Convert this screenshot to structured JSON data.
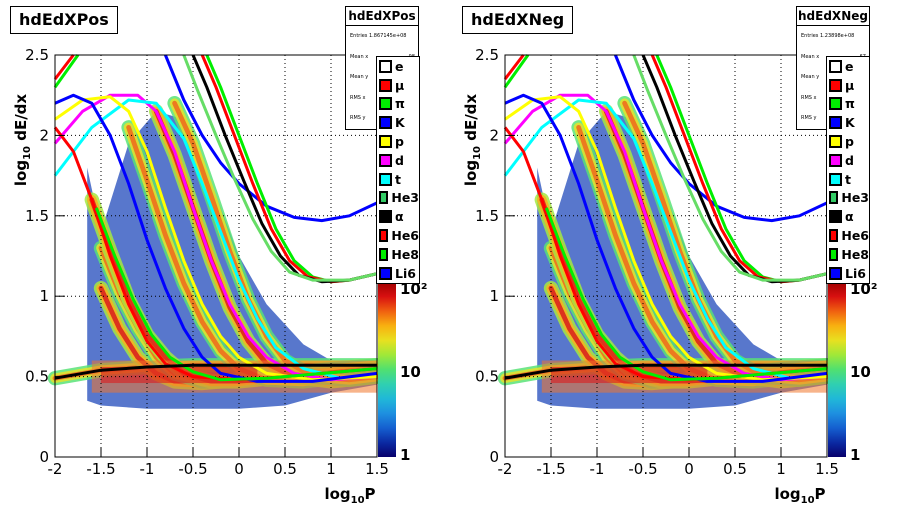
{
  "chart_data": [
    {
      "type": "heatmap",
      "title": "hdEdXPos",
      "xlabel": "log10P",
      "ylabel": "log10 dE/dx",
      "xlim": [
        -2,
        1.5
      ],
      "ylim": [
        0,
        2.5
      ],
      "x_ticks": [
        "-2",
        "-1.5",
        "-1",
        "-0.5",
        "0",
        "0.5",
        "1",
        "1.5"
      ],
      "y_ticks": [
        "0",
        "0.5",
        "1",
        "1.5",
        "2",
        "2.5"
      ],
      "grid": true,
      "z_scale": "log",
      "z_ticks": [
        "1",
        "10",
        "10²"
      ],
      "stats": {
        "name": "hdEdXPos",
        "rows": [
          "Entries  1.867145e+08",
          "Mean x",
          "Mean y",
          "RMS x",
          "RMS y"
        ],
        "values": [
          "",
          "98",
          "92",
          "42",
          "96"
        ]
      },
      "legend": [
        "e",
        "μ",
        "π",
        "K",
        "p",
        "d",
        "t",
        "He3",
        "α",
        "He6",
        "He8",
        "Li6"
      ],
      "legend_colors": [
        "#ffffff",
        "#ff0000",
        "#00ee00",
        "#0000ff",
        "#ffff00",
        "#ff00ff",
        "#00ffff",
        "#33cc66",
        "#000000",
        "#ff0000",
        "#00ee00",
        "#0000ff"
      ]
    },
    {
      "type": "heatmap",
      "title": "hdEdXNeg",
      "xlabel": "log10P",
      "ylabel": "log10 dE/dx",
      "xlim": [
        -2,
        1.5
      ],
      "ylim": [
        0,
        2.5
      ],
      "x_ticks": [
        "-2",
        "-1.5",
        "-1",
        "-0.5",
        "0",
        "0.5",
        "1",
        "1.5"
      ],
      "y_ticks": [
        "0",
        "0.5",
        "1",
        "1.5",
        "2",
        "2.5"
      ],
      "grid": true,
      "z_scale": "log",
      "z_ticks": [
        "1",
        "10",
        "10²"
      ],
      "stats": {
        "name": "hdEdXNeg",
        "rows": [
          "Entries  1.23898e+08",
          "Mean x",
          "Mean y",
          "RMS x",
          "RMS y"
        ],
        "values": [
          "",
          "67",
          "44",
          "84",
          "43"
        ]
      },
      "legend": [
        "e",
        "μ",
        "π",
        "K",
        "p",
        "d",
        "t",
        "He3",
        "α",
        "He6",
        "He8",
        "Li6"
      ],
      "legend_colors": [
        "#ffffff",
        "#ff0000",
        "#00ee00",
        "#0000ff",
        "#ffff00",
        "#ff00ff",
        "#00ffff",
        "#33cc66",
        "#000000",
        "#ff0000",
        "#00ee00",
        "#0000ff"
      ]
    }
  ],
  "bands": [
    {
      "name": "e",
      "color": "#000000",
      "points": [
        [
          -2,
          0.49
        ],
        [
          -1.5,
          0.54
        ],
        [
          -1,
          0.56
        ],
        [
          -0.5,
          0.57
        ],
        [
          0,
          0.57
        ],
        [
          0.5,
          0.57
        ],
        [
          1.5,
          0.57
        ]
      ]
    },
    {
      "name": "μ",
      "color": "#0000ff",
      "points": [
        [
          -1.5,
          1.05
        ],
        [
          -1.3,
          0.8
        ],
        [
          -1.1,
          0.62
        ],
        [
          -0.9,
          0.52
        ],
        [
          -0.7,
          0.47
        ],
        [
          -0.4,
          0.46
        ],
        [
          0,
          0.48
        ],
        [
          0.5,
          0.52
        ],
        [
          1,
          0.55
        ],
        [
          1.5,
          0.57
        ]
      ]
    },
    {
      "name": "π",
      "color": "#00ee00",
      "points": [
        [
          -1.5,
          1.3
        ],
        [
          -1.3,
          1.02
        ],
        [
          -1.1,
          0.8
        ],
        [
          -0.9,
          0.62
        ],
        [
          -0.7,
          0.52
        ],
        [
          -0.4,
          0.47
        ],
        [
          0,
          0.48
        ],
        [
          0.5,
          0.52
        ],
        [
          1.5,
          0.57
        ]
      ]
    },
    {
      "name": "K",
      "color": "#ff0000",
      "points": [
        [
          -1.6,
          1.6
        ],
        [
          -1.4,
          1.28
        ],
        [
          -1.2,
          0.98
        ],
        [
          -1,
          0.76
        ],
        [
          -0.8,
          0.62
        ],
        [
          -0.6,
          0.52
        ],
        [
          -0.3,
          0.47
        ],
        [
          0,
          0.47
        ],
        [
          0.5,
          0.5
        ],
        [
          1.5,
          0.55
        ]
      ]
    },
    {
      "name": "p",
      "color": "#ffff00",
      "points": [
        [
          -1.2,
          2.05
        ],
        [
          -1,
          1.72
        ],
        [
          -0.8,
          1.38
        ],
        [
          -0.6,
          1.08
        ],
        [
          -0.4,
          0.84
        ],
        [
          -0.2,
          0.66
        ],
        [
          0,
          0.55
        ],
        [
          0.3,
          0.48
        ],
        [
          0.7,
          0.47
        ],
        [
          1.5,
          0.52
        ]
      ]
    },
    {
      "name": "d",
      "color": "#ff00ff",
      "points": [
        [
          -0.9,
          2.15
        ],
        [
          -0.7,
          1.88
        ],
        [
          -0.5,
          1.55
        ],
        [
          -0.3,
          1.22
        ],
        [
          -0.1,
          0.93
        ],
        [
          0.1,
          0.72
        ],
        [
          0.3,
          0.58
        ],
        [
          0.6,
          0.5
        ],
        [
          1,
          0.47
        ],
        [
          1.5,
          0.5
        ]
      ]
    },
    {
      "name": "t",
      "color": "#00ffff",
      "points": [
        [
          -0.7,
          2.2
        ],
        [
          -0.5,
          1.95
        ],
        [
          -0.3,
          1.62
        ],
        [
          -0.1,
          1.28
        ],
        [
          0.1,
          0.98
        ],
        [
          0.3,
          0.75
        ],
        [
          0.5,
          0.6
        ],
        [
          0.8,
          0.5
        ],
        [
          1.2,
          0.48
        ],
        [
          1.5,
          0.5
        ]
      ]
    }
  ],
  "curves": [
    {
      "name": "pi-ish",
      "color": "#ff00ff",
      "points": [
        [
          -2,
          1.95
        ],
        [
          -1.7,
          2.15
        ],
        [
          -1.4,
          2.25
        ],
        [
          -1.1,
          2.25
        ],
        [
          -0.9,
          2.15
        ],
        [
          -0.7,
          1.9
        ],
        [
          -0.5,
          1.55
        ],
        [
          -0.3,
          1.22
        ],
        [
          -0.1,
          0.95
        ],
        [
          0.1,
          0.75
        ],
        [
          0.3,
          0.62
        ],
        [
          0.6,
          0.52
        ],
        [
          1,
          0.48
        ],
        [
          1.5,
          0.5
        ]
      ]
    },
    {
      "name": "K-ish",
      "color": "#00ffff",
      "points": [
        [
          -2,
          1.75
        ],
        [
          -1.6,
          2.05
        ],
        [
          -1.2,
          2.22
        ],
        [
          -0.9,
          2.2
        ],
        [
          -0.6,
          1.98
        ],
        [
          -0.4,
          1.7
        ],
        [
          -0.2,
          1.4
        ],
        [
          0,
          1.1
        ],
        [
          0.2,
          0.86
        ],
        [
          0.4,
          0.68
        ],
        [
          0.7,
          0.55
        ],
        [
          1.1,
          0.49
        ],
        [
          1.5,
          0.5
        ]
      ]
    },
    {
      "name": "p-ish",
      "color": "#ffff00",
      "points": [
        [
          -2,
          2.1
        ],
        [
          -1.7,
          2.22
        ],
        [
          -1.4,
          2.24
        ],
        [
          -1.2,
          2.15
        ],
        [
          -1,
          1.9
        ],
        [
          -0.8,
          1.55
        ],
        [
          -0.6,
          1.22
        ],
        [
          -0.4,
          0.95
        ],
        [
          -0.2,
          0.75
        ],
        [
          0,
          0.62
        ],
        [
          0.3,
          0.52
        ],
        [
          0.8,
          0.48
        ],
        [
          1.5,
          0.5
        ]
      ]
    },
    {
      "name": "mu-ish",
      "color": "#0000ff",
      "points": [
        [
          -2,
          2.2
        ],
        [
          -1.8,
          2.25
        ],
        [
          -1.6,
          2.2
        ],
        [
          -1.4,
          2.0
        ],
        [
          -1.2,
          1.7
        ],
        [
          -1,
          1.35
        ],
        [
          -0.8,
          1.05
        ],
        [
          -0.6,
          0.8
        ],
        [
          -0.4,
          0.62
        ],
        [
          -0.2,
          0.52
        ],
        [
          0.2,
          0.47
        ],
        [
          0.8,
          0.47
        ],
        [
          1.5,
          0.52
        ]
      ]
    },
    {
      "name": "blue-upper",
      "color": "#0000ff",
      "points": [
        [
          -0.8,
          2.5
        ],
        [
          -0.6,
          2.22
        ],
        [
          -0.4,
          2.0
        ],
        [
          -0.2,
          1.83
        ],
        [
          0,
          1.7
        ],
        [
          0.3,
          1.56
        ],
        [
          0.6,
          1.49
        ],
        [
          0.9,
          1.47
        ],
        [
          1.2,
          1.5
        ],
        [
          1.5,
          1.58
        ]
      ]
    },
    {
      "name": "green-high",
      "color": "#00ee00",
      "points": [
        [
          -0.35,
          2.5
        ],
        [
          -0.2,
          2.3
        ],
        [
          0,
          2.0
        ],
        [
          0.2,
          1.7
        ],
        [
          0.4,
          1.42
        ],
        [
          0.6,
          1.22
        ],
        [
          0.8,
          1.12
        ],
        [
          1,
          1.09
        ],
        [
          1.2,
          1.1
        ],
        [
          1.5,
          1.14
        ]
      ]
    },
    {
      "name": "red-high",
      "color": "#ff0000",
      "points": [
        [
          -0.4,
          2.5
        ],
        [
          -0.25,
          2.3
        ],
        [
          -0.05,
          2.0
        ],
        [
          0.15,
          1.7
        ],
        [
          0.35,
          1.42
        ],
        [
          0.55,
          1.22
        ],
        [
          0.75,
          1.12
        ],
        [
          1,
          1.09
        ],
        [
          1.2,
          1.1
        ],
        [
          1.5,
          1.14
        ]
      ]
    },
    {
      "name": "black-high",
      "color": "#000000",
      "points": [
        [
          -0.5,
          2.5
        ],
        [
          -0.35,
          2.3
        ],
        [
          -0.15,
          2.0
        ],
        [
          0.05,
          1.72
        ],
        [
          0.25,
          1.45
        ],
        [
          0.45,
          1.25
        ],
        [
          0.65,
          1.13
        ],
        [
          0.9,
          1.09
        ],
        [
          1.2,
          1.1
        ],
        [
          1.5,
          1.14
        ]
      ]
    },
    {
      "name": "green-pale",
      "color": "#66dd66",
      "points": [
        [
          -0.6,
          2.5
        ],
        [
          -0.45,
          2.28
        ],
        [
          -0.25,
          2.0
        ],
        [
          -0.05,
          1.73
        ],
        [
          0.15,
          1.48
        ],
        [
          0.35,
          1.28
        ],
        [
          0.55,
          1.15
        ],
        [
          0.8,
          1.1
        ],
        [
          1.2,
          1.1
        ],
        [
          1.5,
          1.14
        ]
      ]
    },
    {
      "name": "red-left",
      "color": "#ff0000",
      "points": [
        [
          -2,
          2.35
        ],
        [
          -1.8,
          2.5
        ]
      ]
    },
    {
      "name": "green-left",
      "color": "#00ee00",
      "points": [
        [
          -2,
          2.3
        ],
        [
          -1.75,
          2.5
        ]
      ]
    },
    {
      "name": "red-diag",
      "color": "#ff0000",
      "points": [
        [
          -2,
          2.05
        ],
        [
          -1.8,
          1.9
        ],
        [
          -1.6,
          1.6
        ],
        [
          -1.4,
          1.25
        ],
        [
          -1.2,
          0.95
        ],
        [
          -1,
          0.72
        ],
        [
          -0.8,
          0.58
        ],
        [
          -0.5,
          0.5
        ],
        [
          0,
          0.48
        ],
        [
          0.5,
          0.5
        ],
        [
          1.5,
          0.55
        ]
      ]
    },
    {
      "name": "green-diag",
      "color": "#00ee00",
      "points": [
        [
          -1.55,
          1.55
        ],
        [
          -1.35,
          1.25
        ],
        [
          -1.15,
          0.98
        ],
        [
          -0.95,
          0.76
        ],
        [
          -0.75,
          0.62
        ],
        [
          -0.5,
          0.53
        ],
        [
          -0.2,
          0.48
        ],
        [
          0.3,
          0.49
        ],
        [
          1.5,
          0.55
        ]
      ]
    }
  ]
}
